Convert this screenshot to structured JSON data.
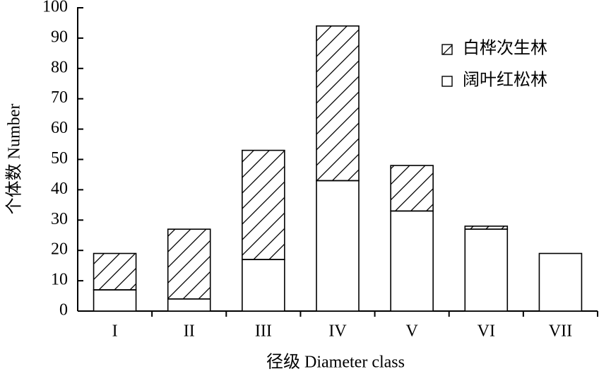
{
  "chart_data": {
    "type": "stacked_bar",
    "x_label": "径级 Diameter class",
    "y_label": "个体数 Number",
    "categories": [
      "I",
      "II",
      "III",
      "IV",
      "V",
      "VI",
      "VII"
    ],
    "series": [
      {
        "name": "阔叶红松林",
        "color": "#ffffff",
        "pattern": "none",
        "values": [
          7,
          4,
          17,
          43,
          33,
          27,
          19
        ]
      },
      {
        "name": "白桦次生林",
        "color": "#ffffff",
        "pattern": "hatch",
        "values": [
          12,
          23,
          36,
          51,
          15,
          1,
          0
        ]
      }
    ],
    "ylim": [
      0,
      100
    ],
    "yticks": [
      0,
      10,
      20,
      30,
      40,
      50,
      60,
      70,
      80,
      90,
      100
    ],
    "legend": "upper right"
  }
}
